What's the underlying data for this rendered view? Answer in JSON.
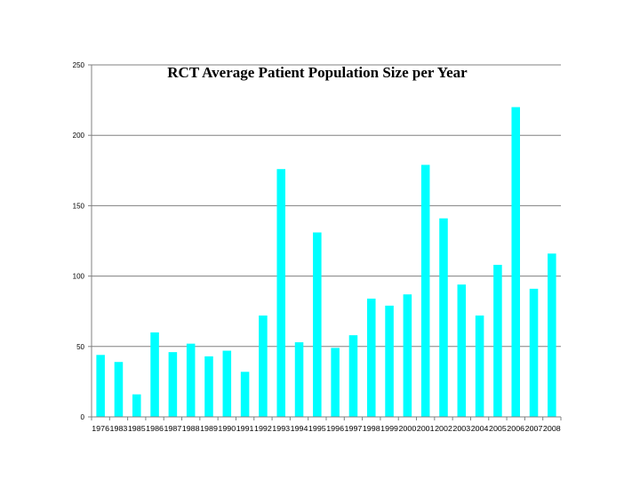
{
  "chart_data": {
    "type": "bar",
    "title": "RCT Average Patient Population Size per Year",
    "xlabel": "",
    "ylabel": "",
    "categories": [
      "1976",
      "1983",
      "1985",
      "1986",
      "1987",
      "1988",
      "1989",
      "1990",
      "1991",
      "1992",
      "1993",
      "1994",
      "1995",
      "1996",
      "1997",
      "1998",
      "1999",
      "2000",
      "2001",
      "2002",
      "2003",
      "2004",
      "2005",
      "2006",
      "2007",
      "2008"
    ],
    "values": [
      44,
      39,
      16,
      60,
      46,
      52,
      43,
      47,
      32,
      72,
      176,
      53,
      131,
      49,
      58,
      84,
      79,
      87,
      179,
      141,
      94,
      72,
      108,
      220,
      91,
      116
    ],
    "ylim": [
      0,
      250
    ],
    "yticks": [
      0,
      50,
      100,
      150,
      200,
      250
    ],
    "grid": true,
    "legend": "none",
    "bar_color": "#00ffff",
    "grid_color": "#808080"
  }
}
